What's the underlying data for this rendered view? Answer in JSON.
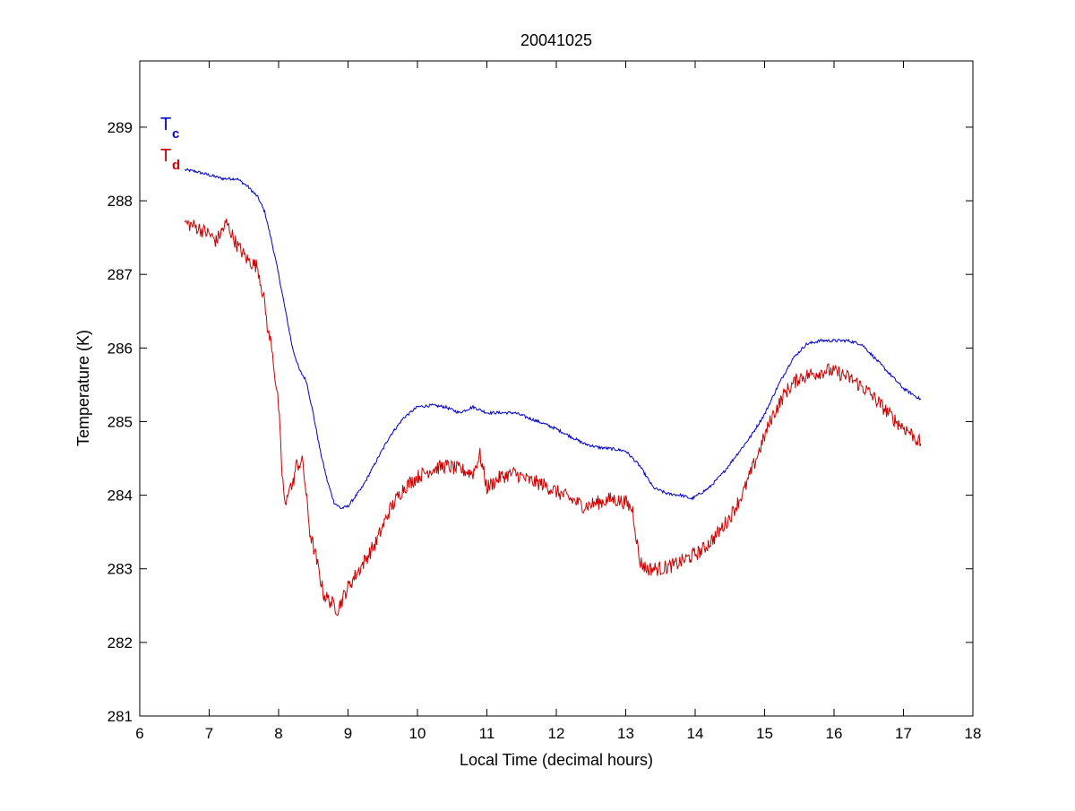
{
  "chart_data": {
    "type": "line",
    "title": "20041025",
    "xlabel": "Local Time (decimal hours)",
    "ylabel": "Temperature (K)",
    "xlim": [
      6,
      18
    ],
    "ylim": [
      281,
      289.9
    ],
    "xticks": [
      6,
      7,
      8,
      9,
      10,
      11,
      12,
      13,
      14,
      15,
      16,
      17,
      18
    ],
    "yticks": [
      281,
      282,
      283,
      284,
      285,
      286,
      287,
      288,
      289
    ],
    "grid": false,
    "legend": {
      "placement": "top-left",
      "entries": [
        {
          "main": "T",
          "sub": "c",
          "color": "#0000cc"
        },
        {
          "main": "T",
          "sub": "d",
          "color": "#cc0000"
        }
      ]
    },
    "series": [
      {
        "color": "#0000cc",
        "noise": 0.02,
        "x": [
          6.65,
          6.8,
          7.0,
          7.2,
          7.4,
          7.55,
          7.7,
          7.8,
          7.9,
          8.0,
          8.1,
          8.2,
          8.3,
          8.4,
          8.5,
          8.6,
          8.7,
          8.8,
          8.9,
          9.0,
          9.2,
          9.4,
          9.6,
          9.8,
          10.0,
          10.2,
          10.4,
          10.6,
          10.8,
          11.0,
          11.2,
          11.4,
          11.6,
          11.8,
          12.0,
          12.2,
          12.4,
          12.6,
          12.8,
          13.0,
          13.2,
          13.4,
          13.6,
          13.8,
          13.95,
          14.2,
          14.4,
          14.6,
          14.8,
          15.0,
          15.2,
          15.4,
          15.6,
          15.8,
          16.0,
          16.2,
          16.4,
          16.6,
          16.8,
          17.0,
          17.25
        ],
        "y": [
          288.42,
          288.4,
          288.35,
          288.3,
          288.3,
          288.2,
          288.05,
          287.85,
          287.45,
          287.0,
          286.5,
          286.0,
          285.7,
          285.55,
          285.1,
          284.6,
          284.2,
          283.9,
          283.82,
          283.85,
          284.1,
          284.45,
          284.8,
          285.05,
          285.2,
          285.22,
          285.2,
          285.12,
          285.2,
          285.12,
          285.12,
          285.12,
          285.05,
          284.98,
          284.9,
          284.8,
          284.7,
          284.65,
          284.63,
          284.6,
          284.4,
          284.1,
          284.02,
          284.0,
          283.95,
          284.1,
          284.3,
          284.55,
          284.8,
          285.1,
          285.5,
          285.85,
          286.05,
          286.1,
          286.1,
          286.1,
          286.05,
          285.85,
          285.65,
          285.45,
          285.3
        ]
      },
      {
        "color": "#cc0000",
        "noise": 0.1,
        "x": [
          6.65,
          6.8,
          7.0,
          7.1,
          7.25,
          7.4,
          7.55,
          7.7,
          7.8,
          7.85,
          7.9,
          7.95,
          8.0,
          8.05,
          8.1,
          8.15,
          8.2,
          8.25,
          8.35,
          8.45,
          8.55,
          8.65,
          8.75,
          8.85,
          9.0,
          9.2,
          9.4,
          9.6,
          9.8,
          10.0,
          10.2,
          10.4,
          10.6,
          10.8,
          10.9,
          11.0,
          11.2,
          11.4,
          11.6,
          11.8,
          12.0,
          12.2,
          12.4,
          12.6,
          12.8,
          13.0,
          13.1,
          13.2,
          13.3,
          13.5,
          13.7,
          13.9,
          14.1,
          14.3,
          14.5,
          14.7,
          14.9,
          15.1,
          15.3,
          15.5,
          15.7,
          15.9,
          16.1,
          16.3,
          16.5,
          16.7,
          16.9,
          17.1,
          17.25
        ],
        "y": [
          287.7,
          287.65,
          287.55,
          287.45,
          287.7,
          287.4,
          287.2,
          287.1,
          286.6,
          286.2,
          286.05,
          285.6,
          285.2,
          284.3,
          283.8,
          284.15,
          284.1,
          284.4,
          284.45,
          283.5,
          283.1,
          282.65,
          282.55,
          282.45,
          282.75,
          283.05,
          283.35,
          283.8,
          284.1,
          284.25,
          284.35,
          284.4,
          284.35,
          284.3,
          284.55,
          284.1,
          284.25,
          284.3,
          284.2,
          284.15,
          284.05,
          283.95,
          283.85,
          283.9,
          283.95,
          283.9,
          283.8,
          283.1,
          283.0,
          283.0,
          283.05,
          283.15,
          283.25,
          283.45,
          283.7,
          284.05,
          284.55,
          285.05,
          285.4,
          285.6,
          285.65,
          285.7,
          285.65,
          285.55,
          285.4,
          285.2,
          285.0,
          284.85,
          284.7
        ]
      }
    ]
  }
}
